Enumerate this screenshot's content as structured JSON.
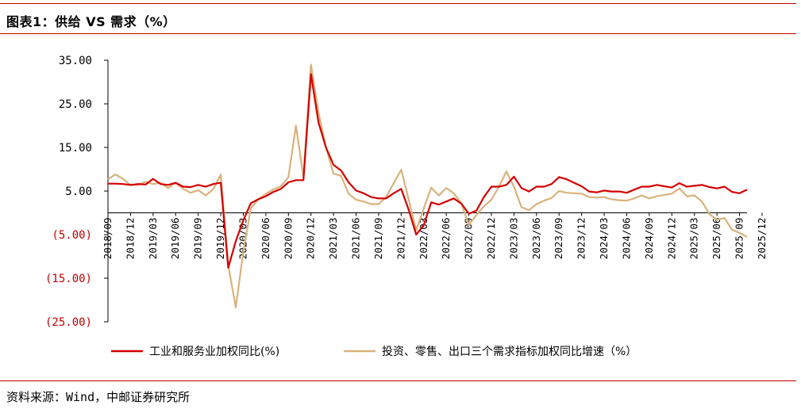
{
  "header": {
    "title": "图表1：供给 VS 需求（%）"
  },
  "footer": {
    "source": "资料来源：Wind，中邮证券研究所"
  },
  "colors": {
    "rule": "#c00000",
    "series_supply": "#d40000",
    "series_demand": "#d9b27c",
    "negative_tick": "#c00000"
  },
  "chart_data": {
    "type": "line",
    "ylim": [
      -25,
      35
    ],
    "yticks": [
      35,
      25,
      15,
      5,
      -5,
      -15,
      -25
    ],
    "ytick_labels": [
      "35.00",
      "25.00",
      "15.00",
      "5.00",
      "(5.00)",
      "(15.00)",
      "(25.00)"
    ],
    "xtick_labels": [
      "2018/09",
      "2018/12",
      "2019/03",
      "2019/06",
      "2019/09",
      "2019/12",
      "2020/03",
      "2020/06",
      "2020/09",
      "2020/12",
      "2021/03",
      "2021/06",
      "2021/09",
      "2021/12",
      "2022/03",
      "2022/06",
      "2022/09",
      "2022/12",
      "2023/03",
      "2023/06",
      "2023/09",
      "2023/12",
      "2024/03",
      "2024/06",
      "2024/09",
      "2024/12",
      "2025/03",
      "2025/06",
      "2025/09",
      "2025/12"
    ],
    "x_start": "2018/09",
    "x_end": "2025/12",
    "legend_position": "bottom",
    "grid": false,
    "series": [
      {
        "name": "工业和服务业加权同比(%)",
        "values": [
          6.7,
          6.7,
          6.6,
          6.4,
          6.6,
          6.5,
          7.8,
          6.6,
          6.4,
          6.9,
          6.0,
          5.9,
          6.4,
          6.0,
          6.6,
          6.9,
          -12.6,
          -6.5,
          -1.7,
          2.2,
          3.1,
          3.8,
          4.8,
          5.5,
          7.0,
          7.5,
          7.5,
          31.8,
          20.7,
          15.0,
          11.0,
          9.7,
          7.0,
          5.1,
          4.5,
          3.6,
          3.3,
          3.3,
          4.5,
          5.5,
          0.7,
          -5.0,
          -2.8,
          2.4,
          1.9,
          2.6,
          3.3,
          2.1,
          -0.2,
          0.5,
          3.6,
          6.0,
          6.0,
          6.4,
          8.3,
          5.7,
          4.9,
          6.0,
          6.0,
          6.6,
          8.2,
          7.7,
          6.9,
          6.1,
          4.9,
          4.7,
          5.1,
          4.9,
          4.9,
          4.6,
          5.3,
          6.0,
          6.0,
          6.4,
          6.1,
          5.8,
          6.8,
          6.0,
          6.2,
          6.4,
          5.9,
          5.6,
          6.0,
          4.8,
          4.5,
          5.3
        ]
      },
      {
        "name": "投资、零售、出口三个需求指标加权同比增速（%）",
        "values": [
          7.7,
          8.8,
          7.8,
          6.4,
          6.4,
          7.1,
          6.6,
          6.9,
          5.7,
          6.9,
          5.5,
          4.6,
          5.2,
          4.0,
          5.4,
          8.8,
          -12.0,
          -21.7,
          -8.9,
          1.0,
          3.1,
          4.3,
          5.4,
          6.1,
          8.2,
          20.0,
          8.2,
          34.0,
          23.0,
          15.0,
          9.0,
          8.5,
          4.4,
          3.0,
          2.6,
          2.0,
          2.0,
          3.6,
          6.8,
          9.9,
          3.0,
          -4.0,
          1.0,
          5.8,
          4.0,
          5.7,
          4.5,
          2.2,
          -2.8,
          -0.5,
          1.5,
          3.0,
          6.0,
          9.5,
          6.0,
          1.3,
          0.6,
          2.0,
          2.8,
          3.4,
          5.0,
          4.6,
          4.5,
          4.4,
          3.6,
          3.5,
          3.6,
          3.1,
          2.9,
          2.8,
          3.3,
          4.0,
          3.3,
          3.8,
          4.1,
          4.4,
          5.6,
          3.8,
          4.0,
          2.6,
          -0.3,
          -1.6,
          -1.2,
          -3.9,
          -4.6,
          -5.5
        ]
      }
    ]
  }
}
